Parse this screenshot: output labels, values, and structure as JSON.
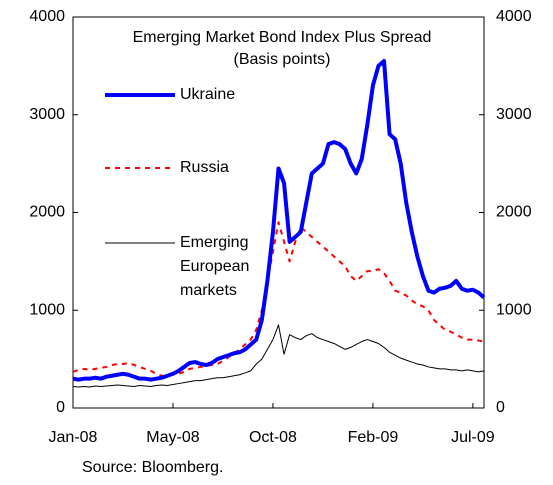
{
  "chart_data": {
    "type": "line",
    "title": "Emerging Market Bond Index Plus Spread",
    "subtitle": "(Basis points)",
    "source": "Source: Bloomberg.",
    "categories": [
      "Jan-08",
      null,
      null,
      null,
      null,
      null,
      null,
      null,
      null,
      null,
      null,
      null,
      null,
      null,
      null,
      null,
      null,
      null,
      "May-08",
      null,
      null,
      null,
      null,
      null,
      null,
      null,
      null,
      null,
      null,
      null,
      null,
      null,
      null,
      null,
      null,
      null,
      "Oct-08",
      null,
      null,
      null,
      null,
      null,
      null,
      null,
      null,
      null,
      null,
      null,
      null,
      null,
      null,
      null,
      null,
      null,
      "Feb-09",
      null,
      null,
      null,
      null,
      null,
      null,
      null,
      null,
      null,
      null,
      null,
      null,
      null,
      null,
      null,
      null,
      null,
      "Jul-09",
      null,
      null
    ],
    "series": [
      {
        "name": "Ukraine",
        "color": "#0000ff",
        "width": 4,
        "dashed": false,
        "values": [
          300,
          290,
          300,
          300,
          310,
          300,
          320,
          330,
          340,
          350,
          340,
          320,
          300,
          300,
          290,
          300,
          310,
          330,
          350,
          380,
          420,
          460,
          470,
          450,
          440,
          460,
          500,
          520,
          540,
          560,
          570,
          600,
          650,
          700,
          900,
          1300,
          1800,
          2450,
          2300,
          1700,
          1750,
          1800,
          2100,
          2400,
          2450,
          2500,
          2700,
          2720,
          2700,
          2650,
          2500,
          2400,
          2550,
          2900,
          3300,
          3500,
          3550,
          2800,
          2750,
          2500,
          2100,
          1800,
          1550,
          1350,
          1200,
          1180,
          1220,
          1230,
          1250,
          1300,
          1220,
          1200,
          1210,
          1180,
          1130
        ]
      },
      {
        "name": "Russia",
        "color": "#ff0000",
        "width": 2,
        "dashed": true,
        "values": [
          370,
          390,
          400,
          390,
          400,
          410,
          420,
          440,
          450,
          450,
          460,
          440,
          420,
          400,
          380,
          350,
          330,
          330,
          340,
          350,
          370,
          400,
          410,
          420,
          430,
          440,
          450,
          480,
          520,
          560,
          600,
          650,
          700,
          800,
          1000,
          1300,
          1600,
          1900,
          1700,
          1500,
          1700,
          1850,
          1800,
          1750,
          1700,
          1650,
          1600,
          1550,
          1500,
          1450,
          1350,
          1300,
          1350,
          1400,
          1400,
          1420,
          1380,
          1300,
          1200,
          1180,
          1150,
          1100,
          1060,
          1040,
          1000,
          900,
          850,
          800,
          780,
          750,
          720,
          700,
          700,
          690,
          680
        ]
      },
      {
        "name": "Emerging European markets",
        "color": "#000000",
        "width": 1,
        "dashed": false,
        "values": [
          220,
          215,
          220,
          215,
          225,
          220,
          225,
          230,
          235,
          230,
          225,
          220,
          230,
          225,
          220,
          230,
          235,
          230,
          240,
          250,
          260,
          270,
          280,
          280,
          290,
          300,
          310,
          310,
          320,
          330,
          340,
          360,
          380,
          450,
          500,
          600,
          700,
          850,
          550,
          750,
          720,
          700,
          740,
          760,
          720,
          700,
          680,
          660,
          630,
          600,
          620,
          650,
          680,
          700,
          680,
          660,
          620,
          570,
          540,
          510,
          490,
          470,
          450,
          440,
          420,
          410,
          400,
          400,
          390,
          390,
          380,
          390,
          380,
          370,
          380
        ]
      }
    ],
    "ylim": [
      0,
      4000
    ],
    "yticks": [
      0,
      1000,
      2000,
      3000,
      4000
    ],
    "y2lim": [
      0,
      4000
    ],
    "y2ticks": [
      0,
      1000,
      2000,
      3000,
      4000
    ],
    "grid": false,
    "legend": "inline"
  }
}
